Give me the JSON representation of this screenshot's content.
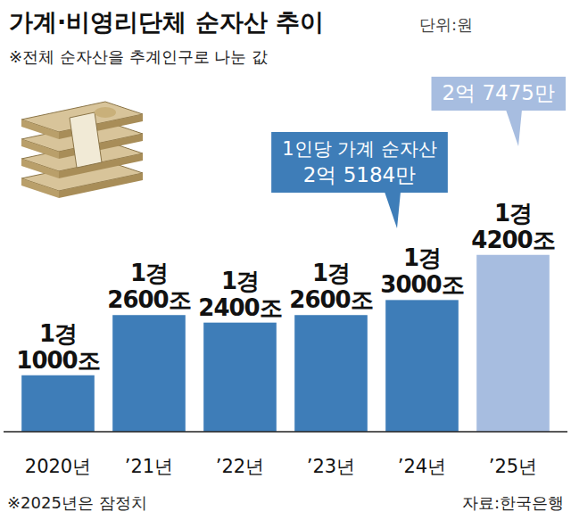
{
  "chart_data": {
    "type": "bar",
    "title": "가계·비영리단체 순자산 추이",
    "unit": "단위:원",
    "subtitle": "※전체 순자산을 추계인구로 나눈 값",
    "note": "※2025년은 잠정치",
    "source": "자료:한국은행",
    "categories": [
      "2020년",
      "’21년",
      "’22년",
      "’23년",
      "’24년",
      "’25년"
    ],
    "values": [
      11000000000000000,
      12600000000000000,
      12400000000000000,
      12600000000000000,
      13000000000000000,
      14200000000000000
    ],
    "value_labels": [
      "1경 1000조",
      "1경 2600조",
      "1경 2400조",
      "1경 2600조",
      "1경 3000조",
      "1경 4200조"
    ],
    "colors": [
      "#3e7db8",
      "#3e7db8",
      "#3e7db8",
      "#3e7db8",
      "#3e7db8",
      "#a7bde0"
    ],
    "ylim": [
      9500000000000000,
      15000000000000000
    ],
    "tick_labels": false,
    "grid": false,
    "data_labels": true,
    "annotations": [
      {
        "text": "1인당 가계 순자산",
        "category": "’24년",
        "value": 251840000,
        "label": "2억 5184만",
        "color": "#3e7db8"
      },
      {
        "category": "’25년",
        "value": 274750000,
        "label": "2억 7475만",
        "color": "#a7bde0"
      }
    ]
  }
}
